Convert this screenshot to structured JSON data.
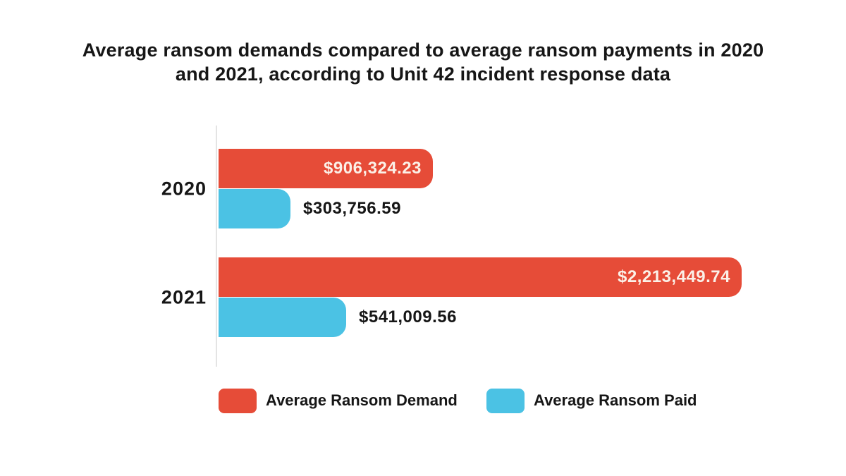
{
  "colors": {
    "demand_red": "#E64C38",
    "paid_blue": "#4BC2E4",
    "axis_gray": "#E4E4E4",
    "text_dark": "#161616",
    "inside_label_cream": "#FBF1E8",
    "background": "#FFFFFF"
  },
  "chart_data": {
    "type": "bar",
    "orientation": "horizontal",
    "title": "Average ransom demands compared to average ransom payments in 2020 and 2021, according to Unit 42 incident response data",
    "categories": [
      "2020",
      "2021"
    ],
    "series": [
      {
        "name": "Average Ransom Demand",
        "color": "#E64C38",
        "values": [
          906324.23,
          2213449.74
        ],
        "labels": [
          "$906,324.23",
          "$2,213,449.74"
        ],
        "label_position": "inside-end"
      },
      {
        "name": "Average Ransom Paid",
        "color": "#4BC2E4",
        "values": [
          303756.59,
          541009.56
        ],
        "labels": [
          "$303,756.59",
          "$541,009.56"
        ],
        "label_position": "outside-end"
      }
    ],
    "value_axis": {
      "min": 0,
      "max": 2213449.74,
      "visible": false
    },
    "gridlines": false,
    "legend_position": "bottom"
  }
}
